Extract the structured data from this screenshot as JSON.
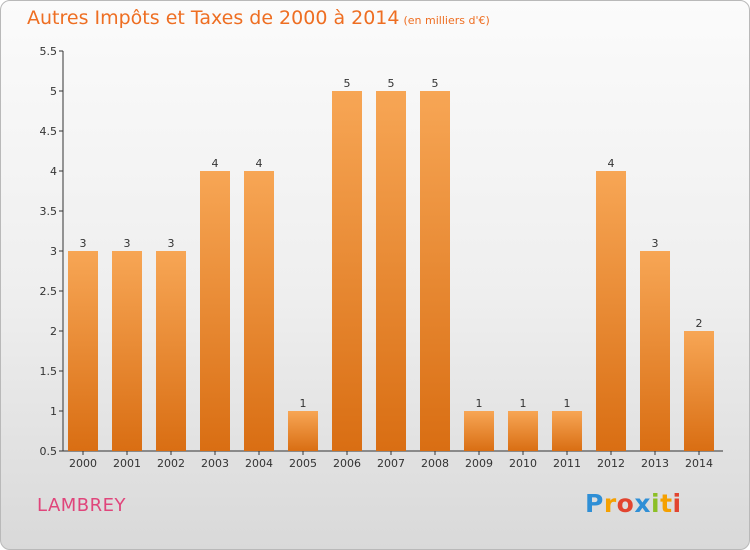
{
  "title": "Autres Impôts et Taxes de 2000 à 2014",
  "title_unit": "(en milliers d'€)",
  "commune": "LAMBREY",
  "logo": {
    "text": "Proxiti",
    "letters": [
      {
        "ch": "P",
        "color": "#2f8fd6"
      },
      {
        "ch": "r",
        "color": "#f5a000"
      },
      {
        "ch": "o",
        "color": "#e2442f"
      },
      {
        "ch": "x",
        "color": "#2f8fd6"
      },
      {
        "ch": "i",
        "color": "#8cbf26"
      },
      {
        "ch": "t",
        "color": "#f5a000"
      },
      {
        "ch": "i",
        "color": "#e2442f"
      }
    ]
  },
  "colors": {
    "bar_top": "#f7a655",
    "bar_bottom": "#d96e13",
    "axis": "#333333",
    "grid": "#aaaaaa"
  },
  "chart_data": {
    "type": "bar",
    "categories": [
      "2000",
      "2001",
      "2002",
      "2003",
      "2004",
      "2005",
      "2006",
      "2007",
      "2008",
      "2009",
      "2010",
      "2011",
      "2012",
      "2013",
      "2014"
    ],
    "values": [
      3,
      3,
      3,
      4,
      4,
      1,
      5,
      5,
      5,
      1,
      1,
      1,
      4,
      3,
      2
    ],
    "value_labels": [
      "3",
      "3",
      "3",
      "4",
      "4",
      "1",
      "5",
      "5",
      "5",
      "1",
      "1",
      "1",
      "4",
      "3",
      "2"
    ],
    "yticks": [
      0.5,
      1,
      1.5,
      2,
      2.5,
      3,
      3.5,
      4,
      4.5,
      5,
      5.5
    ],
    "ytick_labels": [
      "0.5",
      "1",
      "1.5",
      "2",
      "2.5",
      "3",
      "3.5",
      "4",
      "4.5",
      "5",
      "5.5"
    ],
    "ylim": [
      0.5,
      5.5
    ],
    "grid": false,
    "legend": "none"
  }
}
